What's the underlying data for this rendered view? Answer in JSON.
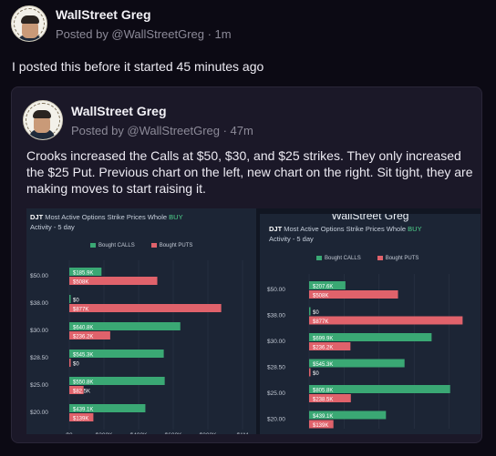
{
  "post": {
    "author": "WallStreet Greg",
    "meta": "Posted by @WallStreetGreg · 1m",
    "text": "I posted this before it started 45 minutes ago"
  },
  "quoted": {
    "author": "WallStreet Greg",
    "meta": "Posted by @WallStreetGreg · 47m",
    "text": "Crooks increased the Calls at $50, $30, and $25 strikes. They only increased the $25 Put. Previous chart on the left, new chart on the right. Sit tight, they are making moves to start raising it."
  },
  "colors": {
    "calls": "#3aa874",
    "puts": "#e0626b"
  },
  "chart_data": [
    {
      "type": "bar",
      "title_prefix": "DJT",
      "title": "Most Active Options Strike Prices Whole",
      "title_highlight": "BUY",
      "subtitle": "Activity - 5 day",
      "legend": [
        "Bought CALLS",
        "Bought PUTS"
      ],
      "categories": [
        "$50.00",
        "$38.00",
        "$30.00",
        "$28.50",
        "$25.00",
        "$20.00"
      ],
      "series": [
        {
          "name": "Bought CALLS",
          "values": [
            185900,
            0,
            640800,
            545300,
            550800,
            439100
          ],
          "labels": [
            "$185.9K",
            "$0",
            "$640.8K",
            "$545.3K",
            "$550.8K",
            "$439.1K"
          ]
        },
        {
          "name": "Bought PUTS",
          "values": [
            508000,
            877000,
            236200,
            0,
            82500,
            139000
          ],
          "labels": [
            "$508K",
            "$877K",
            "$236.2K",
            "$0",
            "$82.5K",
            "$139K"
          ]
        }
      ],
      "xticks": [
        "$0",
        "$200K",
        "$400K",
        "$600K",
        "$800K",
        "$1M"
      ],
      "xlim": [
        0,
        1000000
      ]
    },
    {
      "type": "bar",
      "header": "WallStreet Greg",
      "title_prefix": "DJT",
      "title": "Most Active Options Strike Prices Whole",
      "title_highlight": "BUY",
      "subtitle": "Activity - 5 day",
      "legend": [
        "Bought CALLS",
        "Bought PUTS"
      ],
      "categories": [
        "$50.00",
        "$38.00",
        "$30.00",
        "$28.50",
        "$25.00",
        "$20.00"
      ],
      "series": [
        {
          "name": "Bought CALLS",
          "values": [
            207600,
            0,
            699900,
            545300,
            805800,
            439100
          ],
          "labels": [
            "$207.6K",
            "$0",
            "$699.9K",
            "$545.3K",
            "$805.8K",
            "$439.1K"
          ]
        },
        {
          "name": "Bought PUTS",
          "values": [
            508000,
            877000,
            236200,
            0,
            238500,
            139000
          ],
          "labels": [
            "$508K",
            "$877K",
            "$236.2K",
            "$0",
            "$238.5K",
            "$139K"
          ]
        }
      ],
      "xlim": [
        0,
        1000000
      ]
    }
  ]
}
